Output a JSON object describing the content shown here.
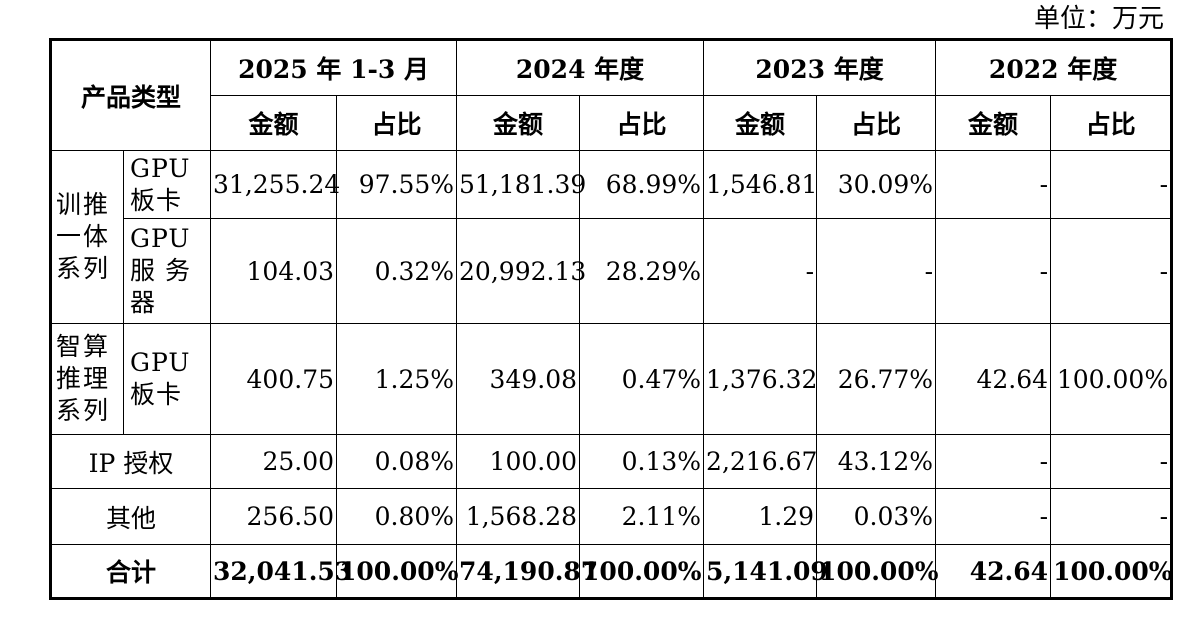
{
  "unit": "单位：万元",
  "header": {
    "product_type": "产品类型",
    "periods": [
      "2025 年 1-3 月",
      "2024 年度",
      "2023 年度",
      "2022 年度"
    ],
    "amount": "金额",
    "ratio": "占比"
  },
  "rows": [
    {
      "group": "训推一体系列",
      "sub": "GPU 板卡",
      "values": [
        "31,255.24",
        "97.55%",
        "51,181.39",
        "68.99%",
        "1,546.81",
        "30.09%",
        "-",
        "-"
      ]
    },
    {
      "sub": "GPU 服 务器",
      "values": [
        "104.03",
        "0.32%",
        "20,992.13",
        "28.29%",
        "-",
        "-",
        "-",
        "-"
      ]
    },
    {
      "group": "智算推理系列",
      "sub": "GPU 板卡",
      "values": [
        "400.75",
        "1.25%",
        "349.08",
        "0.47%",
        "1,376.32",
        "26.77%",
        "42.64",
        "100.00%"
      ]
    },
    {
      "label": "IP 授权",
      "values": [
        "25.00",
        "0.08%",
        "100.00",
        "0.13%",
        "2,216.67",
        "43.12%",
        "-",
        "-"
      ]
    },
    {
      "label": "其他",
      "values": [
        "256.50",
        "0.80%",
        "1,568.28",
        "2.11%",
        "1.29",
        "0.03%",
        "-",
        "-"
      ]
    },
    {
      "label": "合计",
      "values": [
        "32,041.53",
        "100.00%",
        "74,190.87",
        "100.00%",
        "5,141.09",
        "100.00%",
        "42.64",
        "100.00%"
      ]
    }
  ]
}
